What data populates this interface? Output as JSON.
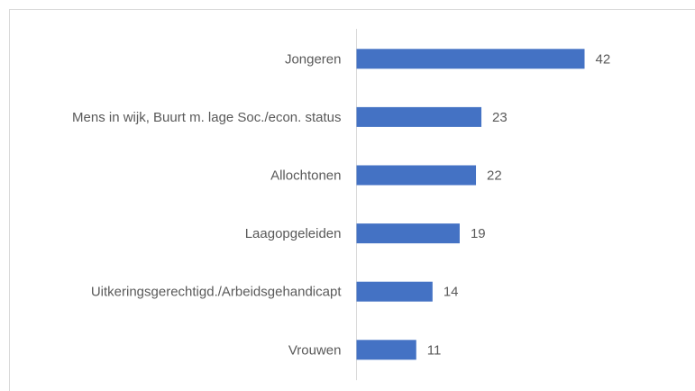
{
  "chart_data": {
    "type": "bar",
    "orientation": "horizontal",
    "categories": [
      "Jongeren",
      "Mens in wijk, Buurt m. lage Soc./econ. status",
      "Allochtonen",
      "Laagopgeleiden",
      "Uitkeringsgerechtigd./Arbeidsgehandicapt",
      "Vrouwen"
    ],
    "values": [
      42,
      23,
      22,
      19,
      14,
      11
    ],
    "color": "#4472c4"
  }
}
